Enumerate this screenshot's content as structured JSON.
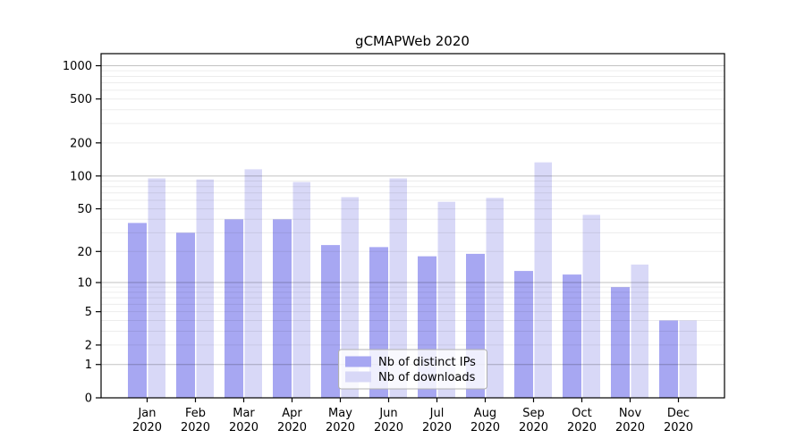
{
  "chart_data": {
    "type": "bar",
    "title": "gCMAPWeb 2020",
    "categories": [
      "Jan",
      "Feb",
      "Mar",
      "Apr",
      "May",
      "Jun",
      "Jul",
      "Aug",
      "Sep",
      "Oct",
      "Nov",
      "Dec"
    ],
    "category_sub_label": "2020",
    "series": [
      {
        "name": "Nb of distinct IPs",
        "color": "#a7a7f2",
        "values": [
          37,
          30,
          40,
          40,
          23,
          22,
          18,
          19,
          13,
          12,
          9,
          4
        ]
      },
      {
        "name": "Nb of downloads",
        "color": "#d8d8f7",
        "values": [
          95,
          93,
          115,
          88,
          64,
          95,
          58,
          63,
          133,
          44,
          15,
          4
        ]
      }
    ],
    "xlabel": "",
    "ylabel": "",
    "yscale": "log1p",
    "ylim": [
      0,
      1300
    ],
    "y_ticks": [
      0,
      1,
      2,
      5,
      10,
      20,
      50,
      100,
      200,
      500,
      1000
    ],
    "major_grid_values": [
      1,
      10,
      100,
      1000
    ],
    "minor_grid_values": [
      2,
      3,
      4,
      5,
      6,
      7,
      8,
      9,
      20,
      30,
      40,
      50,
      60,
      70,
      80,
      90,
      200,
      300,
      400,
      500,
      600,
      700,
      800,
      900
    ],
    "grid": "on",
    "legend_position": "inside-lower-center",
    "colors": {
      "axis": "#000000",
      "major_grid": "rgba(0,0,0,0.24)",
      "minor_grid": "rgba(0,0,0,0.075)",
      "legend_border": "#b0b0b0",
      "legend_background": "rgba(255,255,255,0.82)"
    }
  }
}
